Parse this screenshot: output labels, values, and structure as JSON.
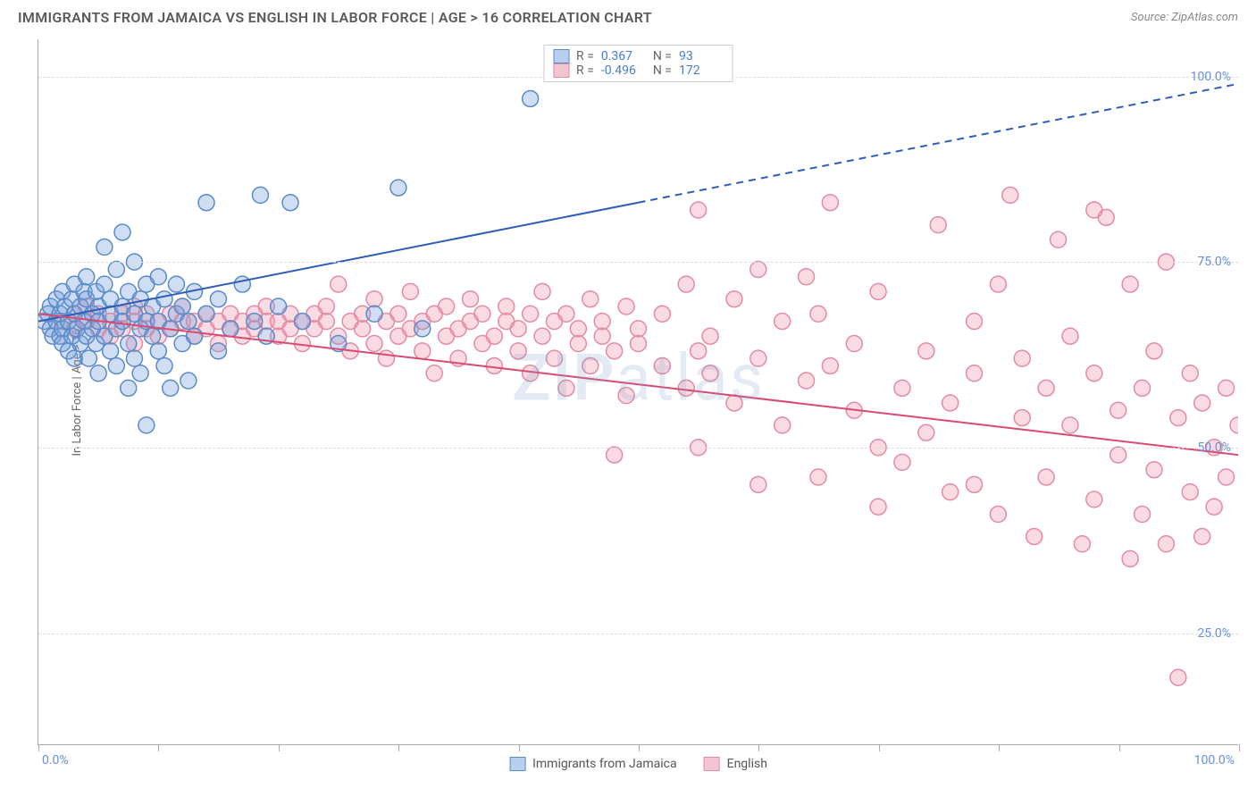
{
  "header": {
    "title": "IMMIGRANTS FROM JAMAICA VS ENGLISH IN LABOR FORCE | AGE > 16 CORRELATION CHART",
    "source": "Source: ZipAtlas.com"
  },
  "chart": {
    "type": "scatter",
    "ylabel": "In Labor Force | Age > 16",
    "xlim": [
      0,
      100
    ],
    "ylim": [
      10,
      105
    ],
    "x_ticks": [
      0,
      10,
      20,
      30,
      40,
      50,
      60,
      70,
      80,
      90,
      100
    ],
    "y_gridlines": [
      25,
      50,
      75,
      100
    ],
    "y_tick_labels": [
      "25.0%",
      "50.0%",
      "75.0%",
      "100.0%"
    ],
    "x_min_label": "0.0%",
    "x_max_label": "100.0%",
    "background_color": "#ffffff",
    "grid_color": "#dddddd",
    "axis_color": "#aaaaaa",
    "tick_label_color": "#6a8fd8",
    "marker_radius": 9,
    "marker_stroke_width": 1.5,
    "series": [
      {
        "name": "Immigrants from Jamaica",
        "fill_color": "rgba(120,160,220,0.35)",
        "stroke_color": "#5a8bc9",
        "swatch_fill": "#b9cfef",
        "swatch_border": "#5a8bc9",
        "R": "0.367",
        "N": "93",
        "trend": {
          "x1": 0,
          "y1": 67,
          "x2_solid": 50,
          "y2_solid": 83,
          "x2": 100,
          "y2": 99,
          "color": "#2e5cb8",
          "width": 2
        },
        "points": [
          [
            0.5,
            67
          ],
          [
            0.8,
            68
          ],
          [
            1,
            66
          ],
          [
            1,
            69
          ],
          [
            1.2,
            65
          ],
          [
            1.5,
            70
          ],
          [
            1.5,
            67
          ],
          [
            1.8,
            68
          ],
          [
            1.8,
            65
          ],
          [
            2,
            66
          ],
          [
            2,
            71
          ],
          [
            2,
            64
          ],
          [
            2.2,
            69
          ],
          [
            2.5,
            67
          ],
          [
            2.5,
            63
          ],
          [
            2.8,
            70
          ],
          [
            2.8,
            65
          ],
          [
            3,
            68
          ],
          [
            3,
            72
          ],
          [
            3,
            62
          ],
          [
            3.2,
            66
          ],
          [
            3.5,
            69
          ],
          [
            3.5,
            64
          ],
          [
            3.8,
            71
          ],
          [
            3.8,
            67
          ],
          [
            4,
            65
          ],
          [
            4,
            70
          ],
          [
            4,
            73
          ],
          [
            4.2,
            62
          ],
          [
            4.5,
            68
          ],
          [
            4.5,
            66
          ],
          [
            4.8,
            71
          ],
          [
            4.8,
            64
          ],
          [
            5,
            69
          ],
          [
            5,
            67
          ],
          [
            5,
            60
          ],
          [
            5.5,
            72
          ],
          [
            5.5,
            65
          ],
          [
            5.5,
            77
          ],
          [
            6,
            68
          ],
          [
            6,
            63
          ],
          [
            6,
            70
          ],
          [
            6.5,
            66
          ],
          [
            6.5,
            74
          ],
          [
            6.5,
            61
          ],
          [
            7,
            69
          ],
          [
            7,
            67
          ],
          [
            7,
            79
          ],
          [
            7.5,
            64
          ],
          [
            7.5,
            71
          ],
          [
            7.5,
            58
          ],
          [
            8,
            68
          ],
          [
            8,
            62
          ],
          [
            8,
            75
          ],
          [
            8.5,
            66
          ],
          [
            8.5,
            70
          ],
          [
            8.5,
            60
          ],
          [
            9,
            67
          ],
          [
            9,
            72
          ],
          [
            9,
            53
          ],
          [
            9.5,
            65
          ],
          [
            9.5,
            69
          ],
          [
            10,
            63
          ],
          [
            10,
            73
          ],
          [
            10,
            67
          ],
          [
            10.5,
            61
          ],
          [
            10.5,
            70
          ],
          [
            11,
            66
          ],
          [
            11,
            58
          ],
          [
            11.5,
            68
          ],
          [
            11.5,
            72
          ],
          [
            12,
            64
          ],
          [
            12,
            69
          ],
          [
            12.5,
            67
          ],
          [
            12.5,
            59
          ],
          [
            13,
            71
          ],
          [
            13,
            65
          ],
          [
            14,
            83
          ],
          [
            14,
            68
          ],
          [
            15,
            63
          ],
          [
            15,
            70
          ],
          [
            16,
            66
          ],
          [
            17,
            72
          ],
          [
            18,
            67
          ],
          [
            18.5,
            84
          ],
          [
            19,
            65
          ],
          [
            20,
            69
          ],
          [
            21,
            83
          ],
          [
            22,
            67
          ],
          [
            25,
            64
          ],
          [
            28,
            68
          ],
          [
            30,
            85
          ],
          [
            32,
            66
          ],
          [
            41,
            97
          ]
        ]
      },
      {
        "name": "English",
        "fill_color": "rgba(240,150,175,0.35)",
        "stroke_color": "#e38ba3",
        "swatch_fill": "#f3c4d1",
        "swatch_border": "#e38ba3",
        "R": "-0.496",
        "N": "172",
        "trend": {
          "x1": 0,
          "y1": 68,
          "x2_solid": 100,
          "y2_solid": 49,
          "x2": 100,
          "y2": 49,
          "color": "#d94a72",
          "width": 2
        },
        "points": [
          [
            2,
            67
          ],
          [
            3,
            68
          ],
          [
            3,
            66
          ],
          [
            4,
            67
          ],
          [
            4,
            69
          ],
          [
            5,
            66
          ],
          [
            5,
            68
          ],
          [
            6,
            67
          ],
          [
            6,
            65
          ],
          [
            7,
            68
          ],
          [
            7,
            66
          ],
          [
            8,
            67
          ],
          [
            8,
            69
          ],
          [
            8,
            64
          ],
          [
            9,
            66
          ],
          [
            9,
            68
          ],
          [
            10,
            67
          ],
          [
            10,
            65
          ],
          [
            11,
            68
          ],
          [
            11,
            66
          ],
          [
            12,
            67
          ],
          [
            12,
            69
          ],
          [
            13,
            65
          ],
          [
            13,
            67
          ],
          [
            14,
            66
          ],
          [
            14,
            68
          ],
          [
            15,
            67
          ],
          [
            15,
            64
          ],
          [
            16,
            68
          ],
          [
            16,
            66
          ],
          [
            17,
            67
          ],
          [
            17,
            65
          ],
          [
            18,
            68
          ],
          [
            18,
            66
          ],
          [
            19,
            67
          ],
          [
            19,
            69
          ],
          [
            20,
            65
          ],
          [
            20,
            67
          ],
          [
            21,
            66
          ],
          [
            21,
            68
          ],
          [
            22,
            67
          ],
          [
            22,
            64
          ],
          [
            23,
            68
          ],
          [
            23,
            66
          ],
          [
            24,
            67
          ],
          [
            24,
            69
          ],
          [
            25,
            65
          ],
          [
            25,
            72
          ],
          [
            26,
            67
          ],
          [
            26,
            63
          ],
          [
            27,
            68
          ],
          [
            27,
            66
          ],
          [
            28,
            64
          ],
          [
            28,
            70
          ],
          [
            29,
            67
          ],
          [
            29,
            62
          ],
          [
            30,
            68
          ],
          [
            30,
            65
          ],
          [
            31,
            66
          ],
          [
            31,
            71
          ],
          [
            32,
            63
          ],
          [
            32,
            67
          ],
          [
            33,
            68
          ],
          [
            33,
            60
          ],
          [
            34,
            65
          ],
          [
            34,
            69
          ],
          [
            35,
            66
          ],
          [
            35,
            62
          ],
          [
            36,
            67
          ],
          [
            36,
            70
          ],
          [
            37,
            64
          ],
          [
            37,
            68
          ],
          [
            38,
            65
          ],
          [
            38,
            61
          ],
          [
            39,
            67
          ],
          [
            39,
            69
          ],
          [
            40,
            63
          ],
          [
            40,
            66
          ],
          [
            41,
            68
          ],
          [
            41,
            60
          ],
          [
            42,
            65
          ],
          [
            42,
            71
          ],
          [
            43,
            62
          ],
          [
            43,
            67
          ],
          [
            44,
            68
          ],
          [
            44,
            58
          ],
          [
            45,
            64
          ],
          [
            45,
            66
          ],
          [
            46,
            70
          ],
          [
            46,
            61
          ],
          [
            47,
            65
          ],
          [
            47,
            67
          ],
          [
            48,
            49
          ],
          [
            48,
            63
          ],
          [
            49,
            69
          ],
          [
            49,
            57
          ],
          [
            50,
            64
          ],
          [
            50,
            66
          ],
          [
            52,
            61
          ],
          [
            52,
            68
          ],
          [
            54,
            58
          ],
          [
            54,
            72
          ],
          [
            55,
            63
          ],
          [
            55,
            82
          ],
          [
            56,
            60
          ],
          [
            56,
            65
          ],
          [
            58,
            56
          ],
          [
            58,
            70
          ],
          [
            60,
            62
          ],
          [
            60,
            45
          ],
          [
            62,
            67
          ],
          [
            62,
            53
          ],
          [
            64,
            59
          ],
          [
            64,
            73
          ],
          [
            65,
            46
          ],
          [
            66,
            61
          ],
          [
            66,
            83
          ],
          [
            68,
            55
          ],
          [
            68,
            64
          ],
          [
            70,
            42
          ],
          [
            70,
            71
          ],
          [
            72,
            58
          ],
          [
            72,
            48
          ],
          [
            74,
            63
          ],
          [
            74,
            52
          ],
          [
            75,
            80
          ],
          [
            76,
            56
          ],
          [
            76,
            44
          ],
          [
            78,
            60
          ],
          [
            78,
            67
          ],
          [
            80,
            41
          ],
          [
            80,
            72
          ],
          [
            81,
            84
          ],
          [
            82,
            54
          ],
          [
            82,
            62
          ],
          [
            83,
            38
          ],
          [
            84,
            58
          ],
          [
            84,
            46
          ],
          [
            85,
            78
          ],
          [
            86,
            53
          ],
          [
            86,
            65
          ],
          [
            87,
            37
          ],
          [
            88,
            60
          ],
          [
            88,
            43
          ],
          [
            89,
            81
          ],
          [
            90,
            55
          ],
          [
            90,
            49
          ],
          [
            91,
            35
          ],
          [
            91,
            72
          ],
          [
            92,
            58
          ],
          [
            92,
            41
          ],
          [
            93,
            63
          ],
          [
            93,
            47
          ],
          [
            94,
            37
          ],
          [
            94,
            75
          ],
          [
            95,
            54
          ],
          [
            95,
            19
          ],
          [
            96,
            60
          ],
          [
            96,
            44
          ],
          [
            97,
            38
          ],
          [
            97,
            56
          ],
          [
            98,
            50
          ],
          [
            98,
            42
          ],
          [
            99,
            58
          ],
          [
            99,
            46
          ],
          [
            100,
            53
          ],
          [
            88,
            82
          ],
          [
            78,
            45
          ],
          [
            70,
            50
          ],
          [
            65,
            68
          ],
          [
            60,
            74
          ],
          [
            55,
            50
          ]
        ]
      }
    ]
  },
  "legend_bottom": [
    {
      "label": "Immigrants from Jamaica",
      "swatch_fill": "#b9cfef",
      "swatch_border": "#5a8bc9"
    },
    {
      "label": "English",
      "swatch_fill": "#f3c4d1",
      "swatch_border": "#e38ba3"
    }
  ],
  "watermark": {
    "bold": "ZIP",
    "rest": "atlas"
  }
}
